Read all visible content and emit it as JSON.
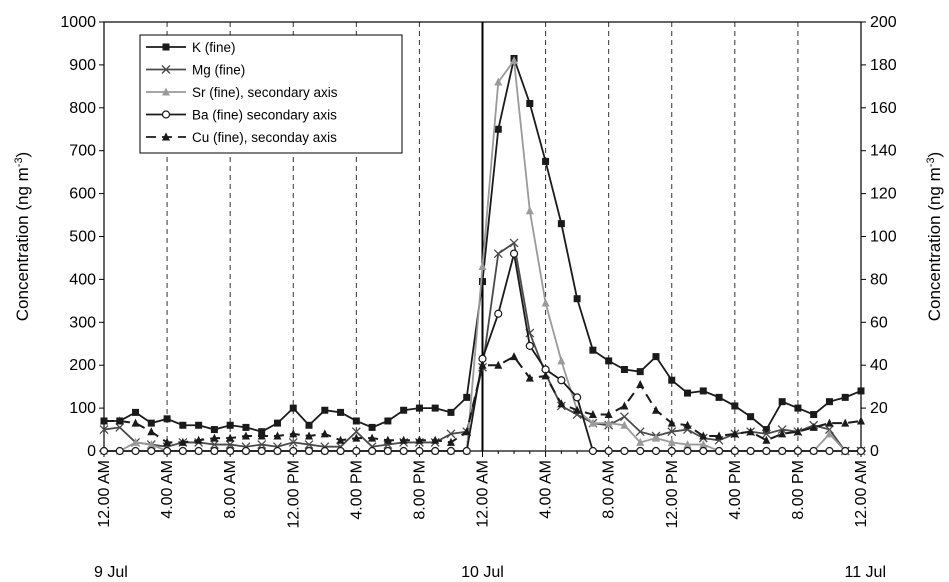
{
  "chart_data": {
    "type": "line",
    "title": "",
    "y_left": {
      "label": "Concentration (ng m",
      "unit_sup": "-3",
      "unit_close": ")",
      "min": 0,
      "max": 1000,
      "ticks": [
        0,
        100,
        200,
        300,
        400,
        500,
        600,
        700,
        800,
        900,
        1000
      ]
    },
    "y_right": {
      "label": "Concentration (ng m",
      "unit_sup": "-3",
      "unit_close": ")",
      "min": 0,
      "max": 200,
      "ticks": [
        0,
        20,
        40,
        60,
        80,
        100,
        120,
        140,
        160,
        180,
        200
      ]
    },
    "x": {
      "min_hours": 0,
      "max_hours": 48,
      "step_hours": 1
    },
    "x_ticks": [
      {
        "h": 0,
        "label": "12.00 AM"
      },
      {
        "h": 4,
        "label": "4.00 AM"
      },
      {
        "h": 8,
        "label": "8.00 AM"
      },
      {
        "h": 12,
        "label": "12.00 PM"
      },
      {
        "h": 16,
        "label": "4.00 PM"
      },
      {
        "h": 20,
        "label": "8.00 PM"
      },
      {
        "h": 24,
        "label": "12.00 AM"
      },
      {
        "h": 28,
        "label": "4.00 AM"
      },
      {
        "h": 32,
        "label": "8.00 AM"
      },
      {
        "h": 36,
        "label": "12.00 PM"
      },
      {
        "h": 40,
        "label": "4.00 PM"
      },
      {
        "h": 44,
        "label": "8.00 PM"
      },
      {
        "h": 48,
        "label": "12.00 AM"
      }
    ],
    "date_labels": [
      {
        "h": 0,
        "label": "9 Jul"
      },
      {
        "h": 24,
        "label": "10 Jul"
      },
      {
        "h": 48,
        "label": "11 Jul"
      }
    ],
    "grid": "vertical dashed every 4 hours",
    "event_line_hour": 24,
    "legend_position": "top-left",
    "series": [
      {
        "name": "K (fine)",
        "axis": "left",
        "color": "#1a1a1a",
        "dash": "solid",
        "marker": "square",
        "values": [
          70,
          70,
          90,
          65,
          75,
          60,
          60,
          50,
          60,
          55,
          45,
          65,
          100,
          60,
          95,
          90,
          70,
          55,
          70,
          95,
          100,
          100,
          90,
          125,
          395,
          750,
          915,
          810,
          675,
          530,
          355,
          235,
          210,
          190,
          185,
          220,
          165,
          135,
          140,
          125,
          105,
          80,
          50,
          115,
          100,
          85,
          115,
          125,
          140
        ]
      },
      {
        "name": "Mg (fine)",
        "axis": "left",
        "color": "#4a4a4a",
        "dash": "solid",
        "marker": "x",
        "values": [
          50,
          55,
          20,
          15,
          10,
          20,
          20,
          15,
          15,
          10,
          15,
          10,
          20,
          15,
          10,
          10,
          45,
          10,
          15,
          20,
          20,
          20,
          40,
          45,
          195,
          460,
          485,
          275,
          180,
          105,
          85,
          65,
          60,
          80,
          45,
          35,
          45,
          50,
          30,
          25,
          40,
          45,
          40,
          50,
          45,
          60,
          50,
          0,
          0
        ]
      },
      {
        "name": "Sr (fine), secondary axis",
        "axis": "right",
        "color": "#9a9a9a",
        "dash": "solid",
        "marker": "triangle",
        "values": [
          0,
          0,
          4,
          3,
          0,
          0,
          0,
          0,
          0,
          0,
          0,
          0,
          0,
          0,
          0,
          0,
          0,
          0,
          0,
          0,
          0,
          0,
          0,
          0,
          86,
          172,
          182,
          112,
          69,
          42,
          19,
          13,
          13,
          12,
          4,
          6,
          4,
          3,
          3,
          0,
          0,
          0,
          0,
          0,
          0,
          0,
          8,
          0,
          0
        ]
      },
      {
        "name": "Ba (fine) secondary axis",
        "axis": "right",
        "color": "#1a1a1a",
        "dash": "solid",
        "marker": "circle",
        "values": [
          0,
          0,
          0,
          0,
          0,
          0,
          0,
          0,
          0,
          0,
          0,
          0,
          0,
          0,
          0,
          0,
          0,
          0,
          0,
          0,
          0,
          0,
          0,
          0,
          43,
          64,
          92,
          49,
          38,
          33,
          25,
          0,
          0,
          0,
          0,
          0,
          0,
          0,
          0,
          0,
          0,
          0,
          0,
          0,
          0,
          0,
          0,
          0,
          0
        ]
      },
      {
        "name": "Cu (fine), seconday axis",
        "axis": "right",
        "color": "#1a1a1a",
        "dash": "dashed",
        "marker": "triangle",
        "values": [
          14,
          14,
          13,
          9,
          4,
          4,
          5,
          6,
          6,
          7,
          7,
          7,
          8,
          7,
          8,
          5,
          6,
          6,
          5,
          5,
          5,
          5,
          4,
          9,
          40,
          40,
          44,
          34,
          35,
          22,
          19,
          17,
          17,
          21,
          31,
          19,
          13,
          12,
          7,
          7,
          8,
          9,
          5,
          8,
          9,
          11,
          13,
          13,
          14
        ]
      }
    ]
  }
}
